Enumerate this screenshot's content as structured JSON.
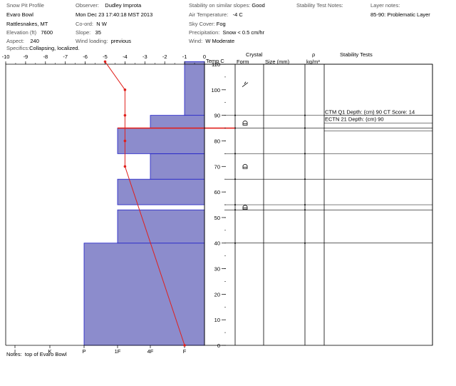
{
  "header": {
    "title": "Snow Pit Profile",
    "location": "Evaro Bowl",
    "region": "Rattlesnakes, MT",
    "elevation_label": "Elevation (ft)",
    "elevation": "7600",
    "aspect_label": "Aspect:",
    "aspect": "240",
    "specifics_label": "Specifics:",
    "specifics": "Collapsing, localized.",
    "observer_label": "Observer:",
    "observer": "Dudley Improta",
    "datetime": "Mon Dec 23 17:40:18 MST 2013",
    "coord_label": "Co-ord:",
    "coord": "N W",
    "slope_label": "Slope:",
    "slope": "35",
    "wind_loading_label": "Wind loading:",
    "wind_loading": "previous",
    "stability_label": "Stability on similar slopes:",
    "stability": "Good",
    "air_temp_label": "Air Temperature:",
    "air_temp": "-4 C",
    "sky_label": "Sky Cover:",
    "sky": "Fog",
    "precip_label": "Precipitation:",
    "precip": "Snow < 0.5 cm/hr",
    "wind_label": "Wind:",
    "wind": "W Moderate",
    "stability_notes_label": "Stability Test Notes:",
    "layer_notes_label": "Layer notes:",
    "layer_notes": "85-90: Problematic Layer"
  },
  "columns": {
    "temp": "Temp C",
    "crystal": "Crystal",
    "form": "Form",
    "size": "Size (mm)",
    "rho": "ρ",
    "density_unit": "kg/m³",
    "stability_tests": "Stability Tests"
  },
  "notes_label": "Notes:",
  "notes": "top of Evaro Bowl",
  "colors": {
    "layer_fill": "#8c8ccc",
    "layer_edge": "#2020c8",
    "temp": "#e0201c",
    "problem_layer": "#e0201c"
  },
  "chart_data": {
    "type": "bar",
    "orientation": "horizontal",
    "x_top_axis": {
      "label": "Temp C",
      "ticks": [
        -10,
        -9,
        -8,
        -7,
        -6,
        -5,
        -4,
        -3,
        -2,
        -1,
        0
      ],
      "range": [
        -10,
        0
      ]
    },
    "x_bottom_axis": {
      "ticks": [
        "I",
        "K",
        "P",
        "1F",
        "4F",
        "F"
      ]
    },
    "y_axis": {
      "range": [
        0,
        110
      ],
      "ticks": [
        0,
        10,
        20,
        30,
        40,
        50,
        60,
        70,
        80,
        90,
        100,
        110
      ]
    },
    "hardness_layers": [
      {
        "bottom": 0,
        "top": 40,
        "hardness": "P"
      },
      {
        "bottom": 40,
        "top": 53,
        "hardness": "1F"
      },
      {
        "bottom": 55,
        "top": 65,
        "hardness": "1F"
      },
      {
        "bottom": 65,
        "top": 75,
        "hardness": "4F"
      },
      {
        "bottom": 75,
        "top": 85,
        "hardness": "1F"
      },
      {
        "bottom": 85,
        "top": 90,
        "hardness": "4F"
      },
      {
        "bottom": 90,
        "top": 111,
        "hardness": "F"
      }
    ],
    "temperature_profile": [
      {
        "depth": 111,
        "temp": -5
      },
      {
        "depth": 100,
        "temp": -4
      },
      {
        "depth": 90,
        "temp": -4
      },
      {
        "depth": 80,
        "temp": -4
      },
      {
        "depth": 70,
        "temp": -4
      },
      {
        "depth": 0,
        "temp": -1
      }
    ],
    "problem_layer_depth": 85,
    "crystal_forms": [
      {
        "depth": 102,
        "form": "decomposing"
      },
      {
        "depth": 87,
        "form": "depth-hoar"
      },
      {
        "depth": 70,
        "form": "depth-hoar"
      },
      {
        "depth": 54,
        "form": "depth-hoar"
      }
    ],
    "stability_tests": [
      {
        "depth": 90,
        "text": "CTM Q1 Depth: (cm) 90 CT Score: 14"
      },
      {
        "depth": 90,
        "text": "ECTN 21  Depth: (cm) 90"
      }
    ]
  }
}
